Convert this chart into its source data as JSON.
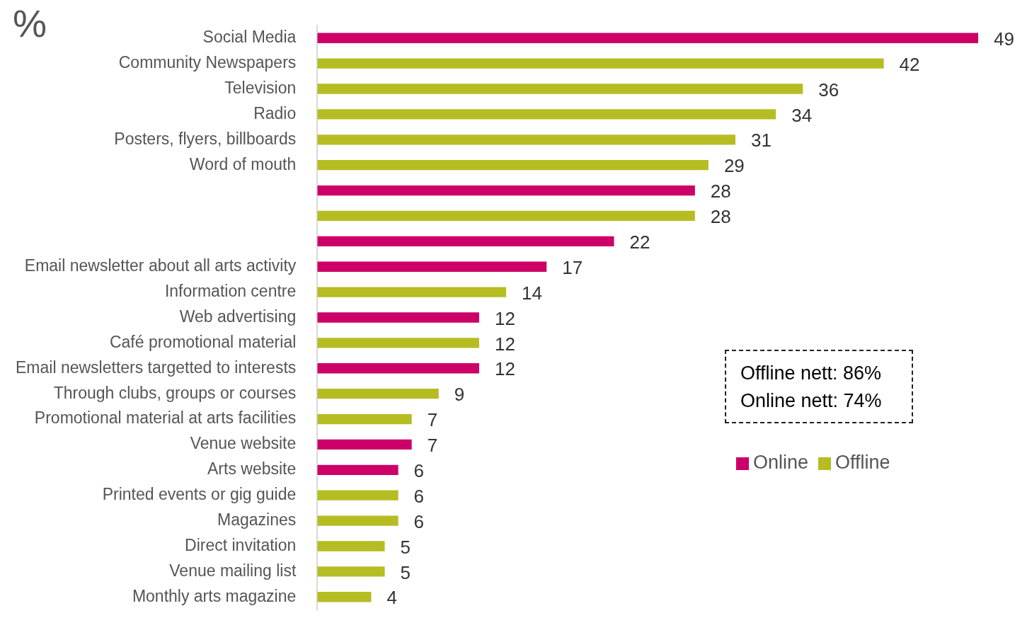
{
  "chart_data": {
    "type": "bar",
    "orientation": "horizontal",
    "stacked": true,
    "data_labels": true,
    "tick_labels": "y",
    "legend": "right",
    "categories": [
      "Social Media",
      "Community Newspapers",
      "Television",
      "Radio",
      "Posters, flyers, billboards",
      "Word of mouth",
      null,
      null,
      null,
      "Email newsletter about all arts activity",
      "Information centre",
      "Web advertising",
      "Café promotional material",
      "Email newsletters targetted to interests",
      "Through clubs, groups or courses",
      "Promotional material at arts facilities",
      "Venue website",
      "Arts website",
      "Printed events or gig guide",
      "Magazines",
      "Direct invitation",
      "Venue mailing list",
      "Monthly arts magazine"
    ],
    "series": [
      {
        "name": "Online",
        "color": "#cc0066",
        "values": [
          49,
          null,
          null,
          null,
          null,
          null,
          28,
          null,
          22,
          17,
          null,
          12,
          null,
          12,
          null,
          null,
          7,
          6,
          null,
          null,
          null,
          null,
          null
        ]
      },
      {
        "name": "Offline",
        "color": "#b5bd22",
        "values": [
          null,
          42,
          36,
          34,
          31,
          29,
          null,
          28,
          null,
          null,
          14,
          null,
          12,
          null,
          9,
          7,
          null,
          null,
          6,
          6,
          5,
          5,
          4
        ]
      }
    ],
    "annotations": [
      "%",
      "Offline nett: 86%",
      "Online nett: 74%"
    ]
  }
}
